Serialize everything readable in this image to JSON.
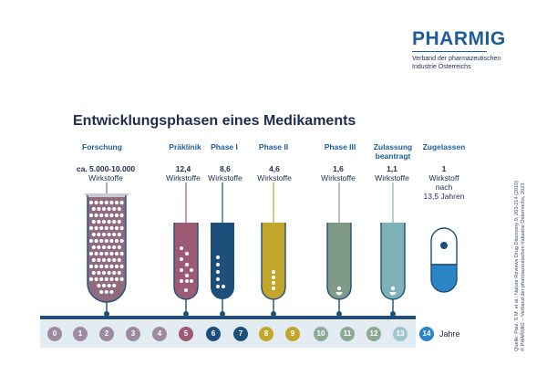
{
  "brand": {
    "name": "PHARMIG",
    "subtitle_line1": "Verband der pharmazeutischen",
    "subtitle_line2": "Industrie Österreichs"
  },
  "title": "Entwicklungsphasen eines Medikaments",
  "phases": [
    {
      "label": "Forschung",
      "count": "ca. 5.000-10.000",
      "unit": "Wirkstoffe",
      "color": "#8f6b7f"
    },
    {
      "label": "Präklinik",
      "count": "12,4",
      "unit": "Wirkstoffe",
      "color": "#9c5a73"
    },
    {
      "label": "Phase I",
      "count": "8,6",
      "unit": "Wirkstoffe",
      "color": "#1e4f7a"
    },
    {
      "label": "Phase II",
      "count": "4,6",
      "unit": "Wirkstoffe",
      "color": "#c2a62a"
    },
    {
      "label": "Phase III",
      "count": "1,6",
      "unit": "Wirkstoffe",
      "color": "#7f9b86"
    },
    {
      "label_line1": "Zulassung",
      "label_line2": "beantragt",
      "count": "1,1",
      "unit": "Wirkstoffe",
      "color": "#7fb2b7"
    },
    {
      "label": "Zugelassen",
      "count": "1",
      "unit_line1": "Wirkstoff",
      "unit_line2": "nach",
      "unit_line3": "13,5 Jahren",
      "color": "#2a86c7"
    }
  ],
  "timeline": {
    "years": [
      "0",
      "1",
      "2",
      "3",
      "4",
      "5",
      "6",
      "7",
      "8",
      "9",
      "10",
      "11",
      "12",
      "13",
      "14"
    ],
    "unit_label": "Jahre"
  },
  "source": {
    "line1": "Quelle: Paul, S.M. et al.: Nature Reviews Drug Discovery 9, 203-214 (2010)",
    "line2": "© PHARMIG – Verband der pharmazeutischen Industrie Österreichs, 2023"
  }
}
